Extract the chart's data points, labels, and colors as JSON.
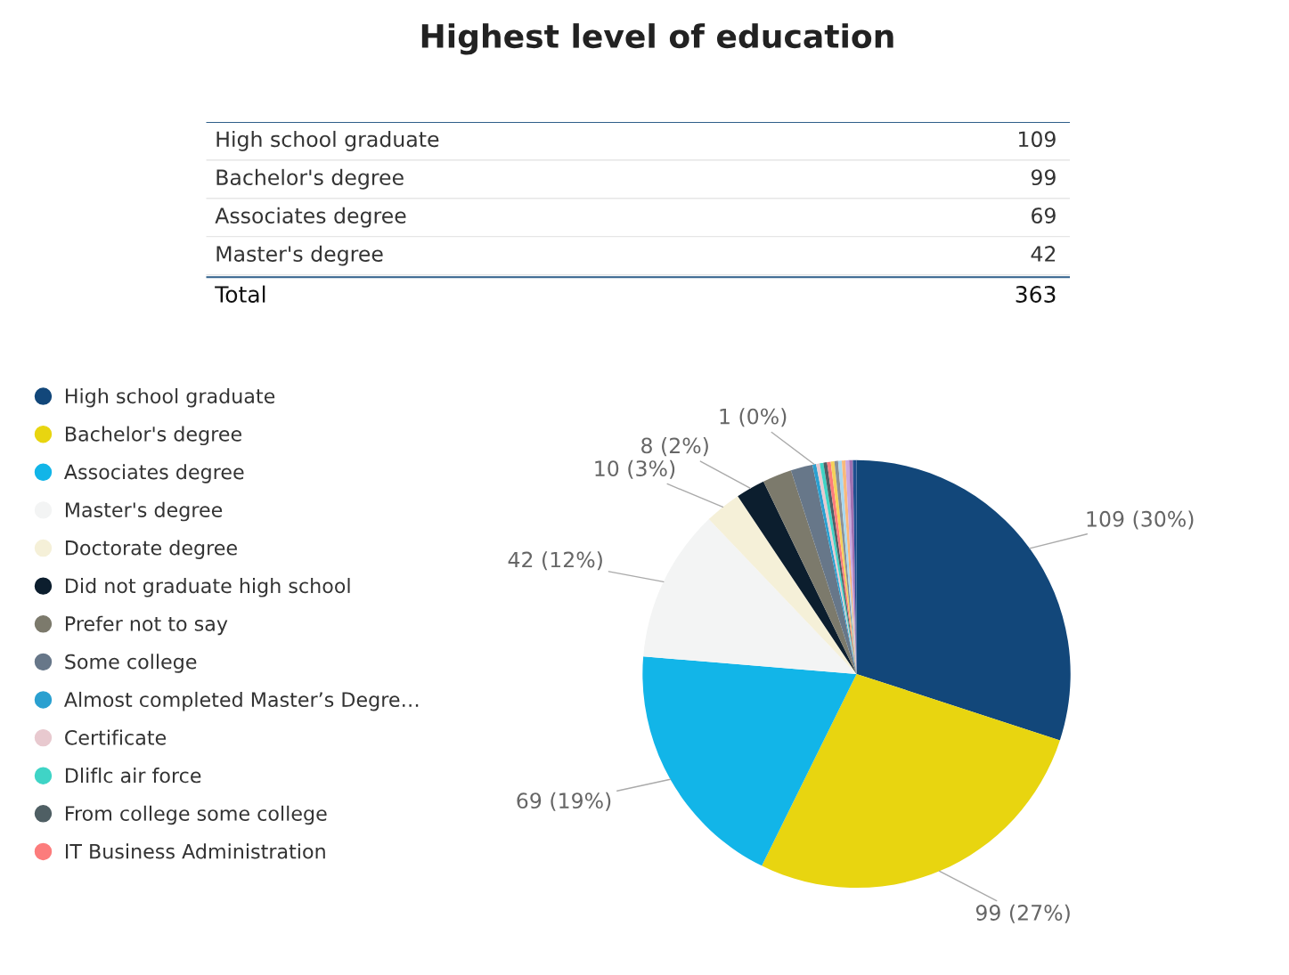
{
  "chart_data": [
    {
      "type": "other",
      "title": "Highest level of education",
      "categories": [
        "High school graduate",
        "Bachelor's degree",
        "Associates degree",
        "Master's degree"
      ],
      "values": [
        109,
        99,
        69,
        42
      ],
      "data_labels": true,
      "annotations": [
        "Total",
        "363"
      ]
    },
    {
      "type": "pie",
      "categories": [
        "High school graduate",
        "Bachelor's degree",
        "Associates degree",
        "Master's degree",
        "Doctorate degree",
        "Did not graduate high school",
        "Prefer not to say",
        "Some college",
        "Almost completed Master’s Degre…",
        "Certificate",
        "Dliflc air force",
        "From college some college",
        "IT Business Administration",
        null,
        null,
        null,
        null,
        null,
        null,
        null
      ],
      "values": [
        109,
        99,
        69,
        42,
        10,
        8,
        8,
        6,
        1,
        1,
        1,
        1,
        1,
        1,
        1,
        1,
        1,
        1,
        1,
        1
      ],
      "colors": [
        "#12477a",
        "#e8d510",
        "#12b5e8",
        "#f3f4f4",
        "#f5f0d8",
        "#0c1e2e",
        "#7c7a6c",
        "#677789",
        "#2aa0d0",
        "#e8c9cf",
        "#3fd4c6",
        "#4f5f64",
        "#fc7c7c",
        "#f4d25a",
        "#8a9096",
        "#a8d8f0",
        "#f8b97c",
        "#c9a8e0",
        "#a070b0",
        "#1f4f8f"
      ],
      "value_labels": [
        "109 (30%)",
        "99 (27%)",
        "69 (19%)",
        "42 (12%)",
        "10 (3%)",
        "8 (2%)",
        null,
        null,
        "1 (0%)",
        null,
        null,
        null,
        null,
        null,
        null,
        null,
        null,
        null,
        null,
        null
      ],
      "legend": "left"
    }
  ]
}
